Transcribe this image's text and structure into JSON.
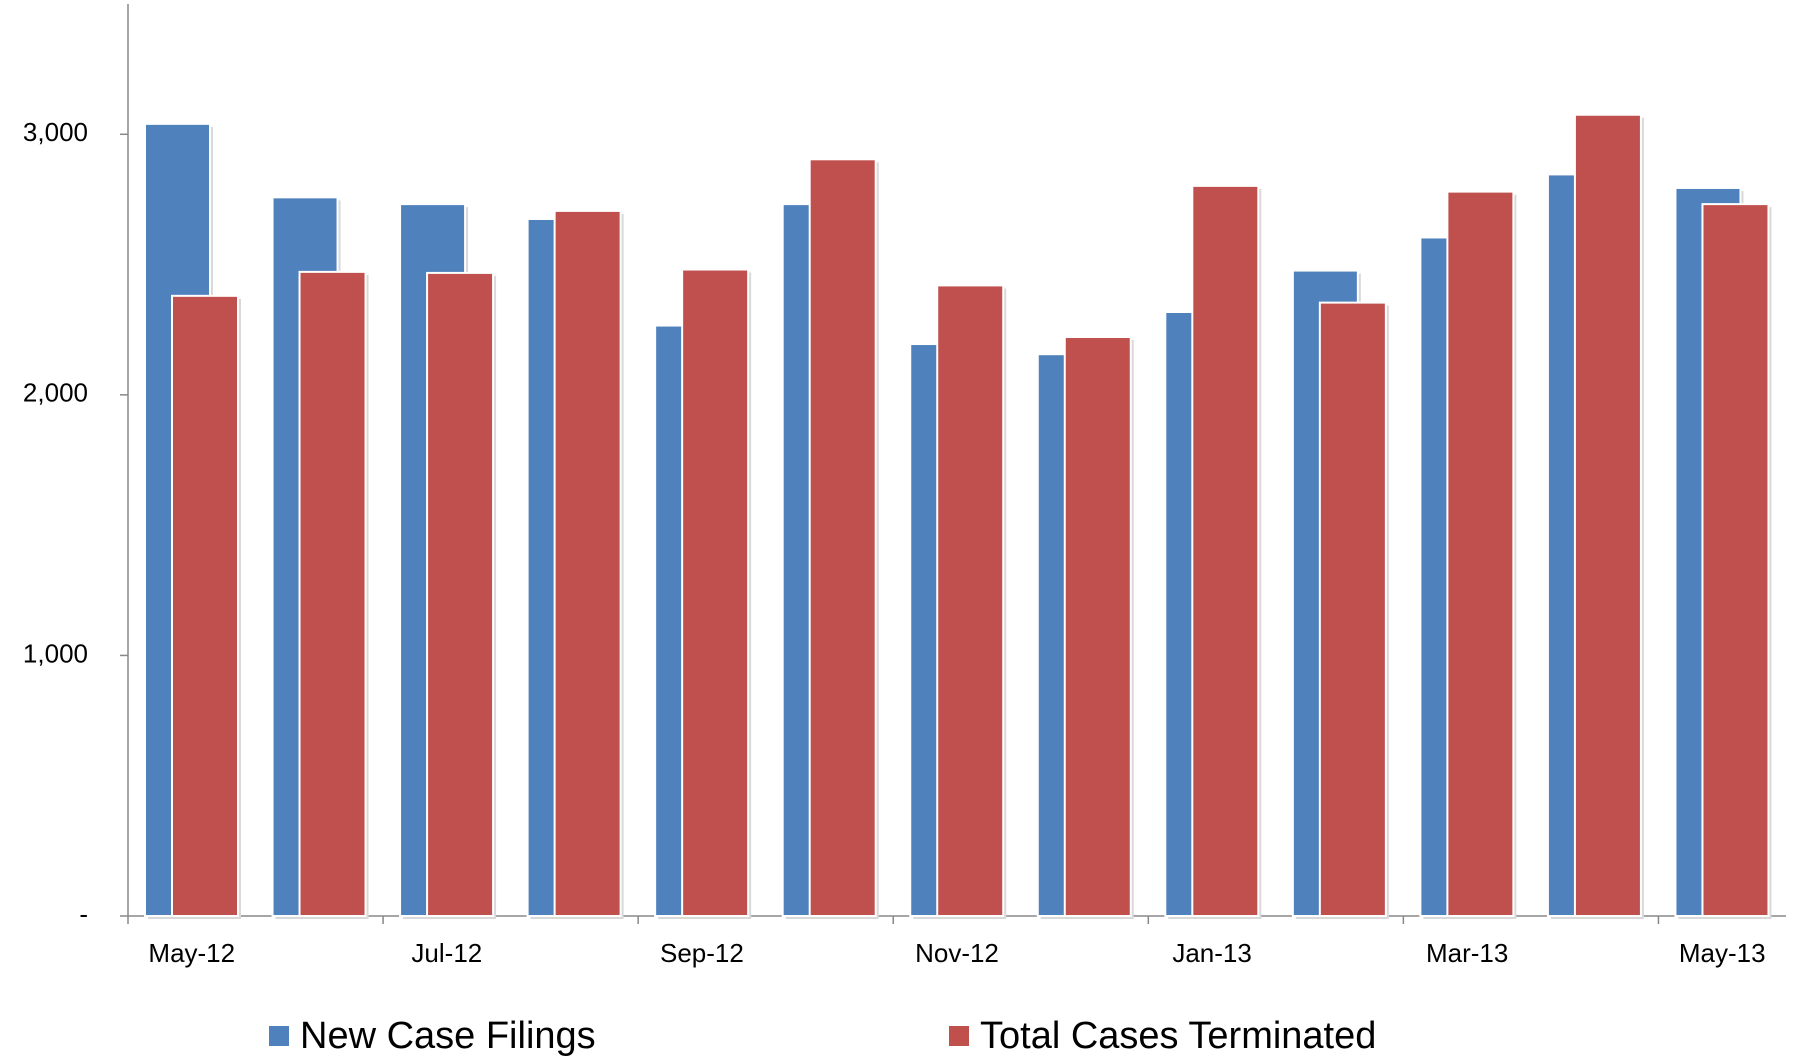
{
  "chart_data": {
    "type": "bar",
    "categories": [
      "May-12",
      null,
      "Jul-12",
      null,
      "Sep-12",
      null,
      "Nov-12",
      null,
      "Jan-13",
      null,
      "Mar-13",
      null,
      "May-13"
    ],
    "series": [
      {
        "name": "New Case Filings",
        "color": "#4f81bd",
        "values": [
          3040,
          2758,
          2732,
          2675,
          2266,
          2732,
          2195,
          2156,
          2318,
          2477,
          2604,
          2846,
          2794
        ]
      },
      {
        "name": "Total Cases Terminated",
        "color": "#c0504d",
        "values": [
          2380,
          2472,
          2468,
          2706,
          2481,
          2904,
          2420,
          2222,
          2802,
          2354,
          2780,
          3075,
          2732
        ]
      }
    ],
    "ylim": [
      0,
      3500
    ],
    "yticks": [
      {
        "value": 0,
        "label": "-"
      },
      {
        "value": 1000,
        "label": "1,000"
      },
      {
        "value": 2000,
        "label": "2,000"
      },
      {
        "value": 3000,
        "label": "3,000"
      }
    ],
    "grid": false
  }
}
